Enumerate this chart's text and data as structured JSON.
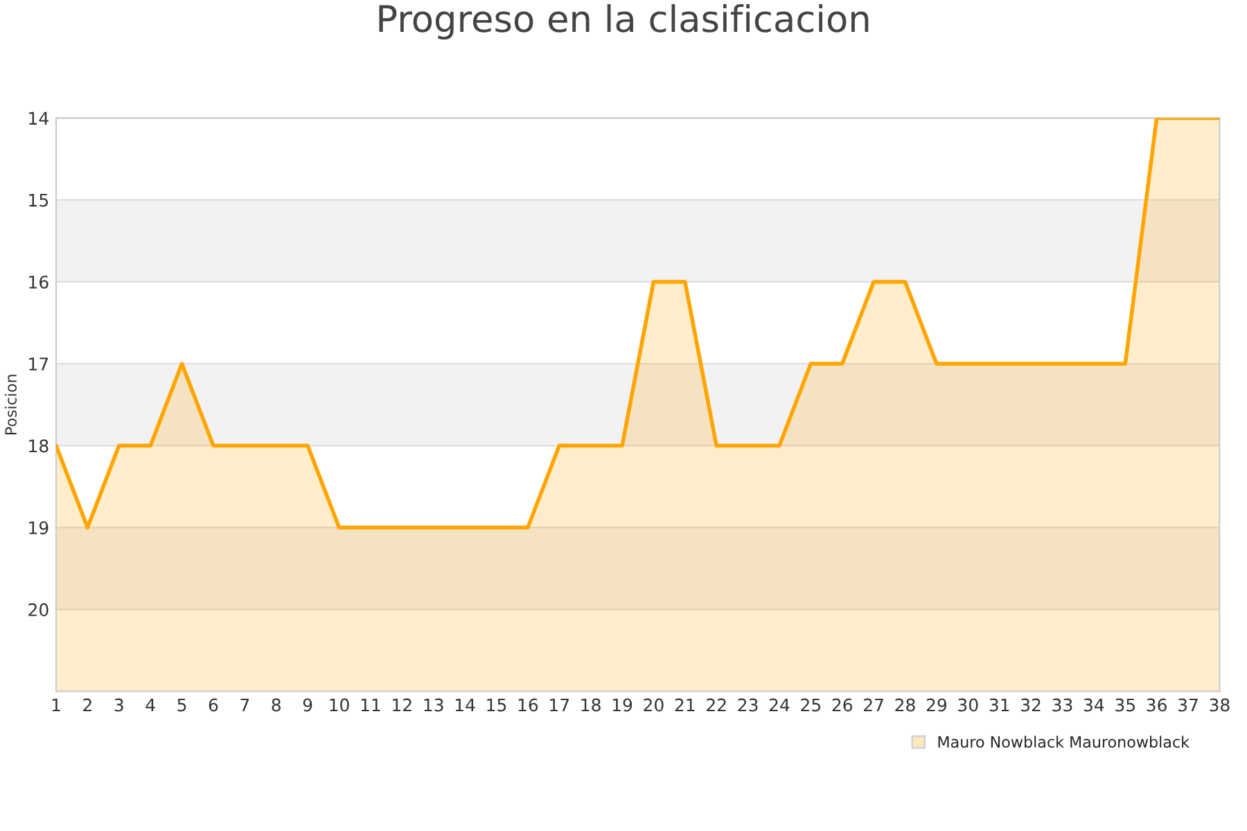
{
  "chart_data": {
    "type": "area",
    "title": "Progreso en la clasificacion",
    "ylabel": "Posicion",
    "x": [
      1,
      2,
      3,
      4,
      5,
      6,
      7,
      8,
      9,
      10,
      11,
      12,
      13,
      14,
      15,
      16,
      17,
      18,
      19,
      20,
      21,
      22,
      23,
      24,
      25,
      26,
      27,
      28,
      29,
      30,
      31,
      32,
      33,
      34,
      35,
      36,
      37,
      38
    ],
    "series": [
      {
        "name": "Mauro Nowblack Mauronowblack",
        "color": "#ffa500",
        "values": [
          18,
          19,
          18,
          18,
          17,
          18,
          18,
          18,
          18,
          19,
          19,
          19,
          19,
          19,
          19,
          19,
          18,
          18,
          18,
          16,
          16,
          18,
          18,
          18,
          17,
          17,
          16,
          16,
          17,
          17,
          17,
          17,
          17,
          17,
          17,
          14,
          14,
          14
        ]
      }
    ],
    "xlim": [
      1,
      38
    ],
    "xticks": [
      1,
      2,
      3,
      4,
      5,
      6,
      7,
      8,
      9,
      10,
      11,
      12,
      13,
      14,
      15,
      16,
      17,
      18,
      19,
      20,
      21,
      22,
      23,
      24,
      25,
      26,
      27,
      28,
      29,
      30,
      31,
      32,
      33,
      34,
      35,
      36,
      37,
      38
    ],
    "ylim": [
      21,
      14
    ],
    "yticks": [
      14,
      15,
      16,
      17,
      18,
      19,
      20
    ],
    "bands": [
      {
        "axis": "y",
        "from": 15,
        "to": 16,
        "color": "#f2f2f2"
      },
      {
        "axis": "y",
        "from": 17,
        "to": 18,
        "color": "#f2f2f2"
      },
      {
        "axis": "y",
        "from": 19,
        "to": 20,
        "color": "#f2f2f2"
      }
    ],
    "grid": "y",
    "legend": "bottom right",
    "marker": "none",
    "line_style": "solid"
  }
}
